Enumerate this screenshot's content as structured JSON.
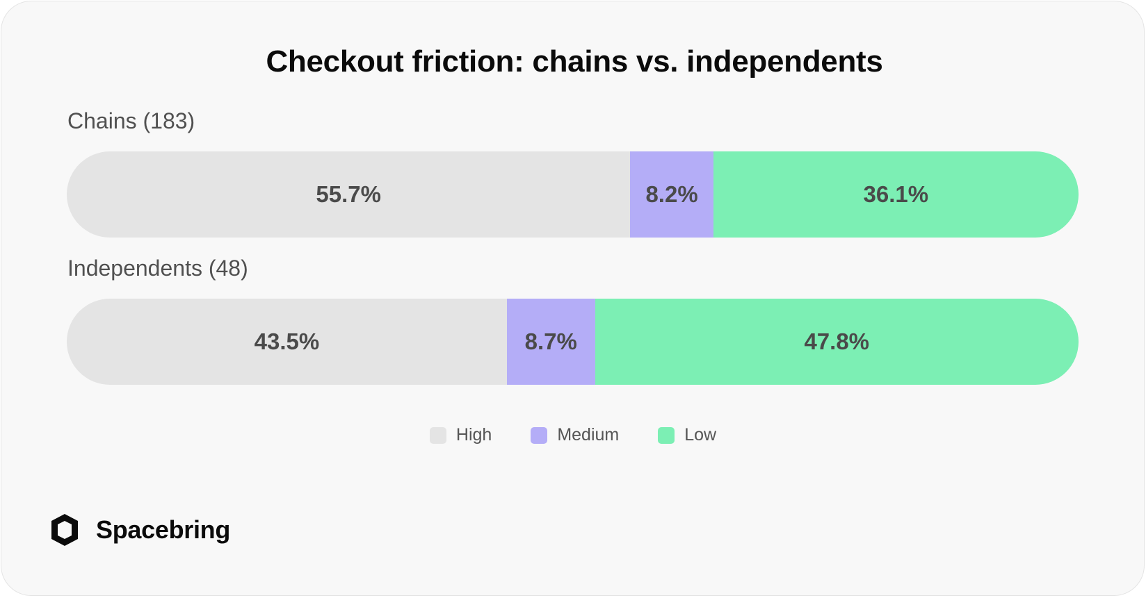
{
  "chart_data": {
    "type": "bar",
    "orientation": "horizontal-stacked-100",
    "title": "Checkout friction: chains vs. independents",
    "categories": [
      "Chains (183)",
      "Independents (48)"
    ],
    "series": [
      {
        "name": "High",
        "color": "#e4e4e4",
        "values": [
          55.7,
          43.5
        ],
        "labels": [
          "55.7%",
          "43.5%"
        ]
      },
      {
        "name": "Medium",
        "color": "#b4adf7",
        "values": [
          8.2,
          8.7
        ],
        "labels": [
          "8.2%",
          "8.7%"
        ]
      },
      {
        "name": "Low",
        "color": "#7cefb4",
        "values": [
          36.1,
          47.8
        ],
        "labels": [
          "36.1%",
          "47.8%"
        ]
      }
    ],
    "xlim": [
      0,
      100
    ],
    "grid": false,
    "legend_position": "bottom"
  },
  "brand": {
    "name": "Spacebring",
    "icon": "spacebring-logo-icon"
  },
  "colors": {
    "background": "#f8f8f8",
    "text_dark": "#0b0b0b",
    "text_muted": "#505050"
  }
}
